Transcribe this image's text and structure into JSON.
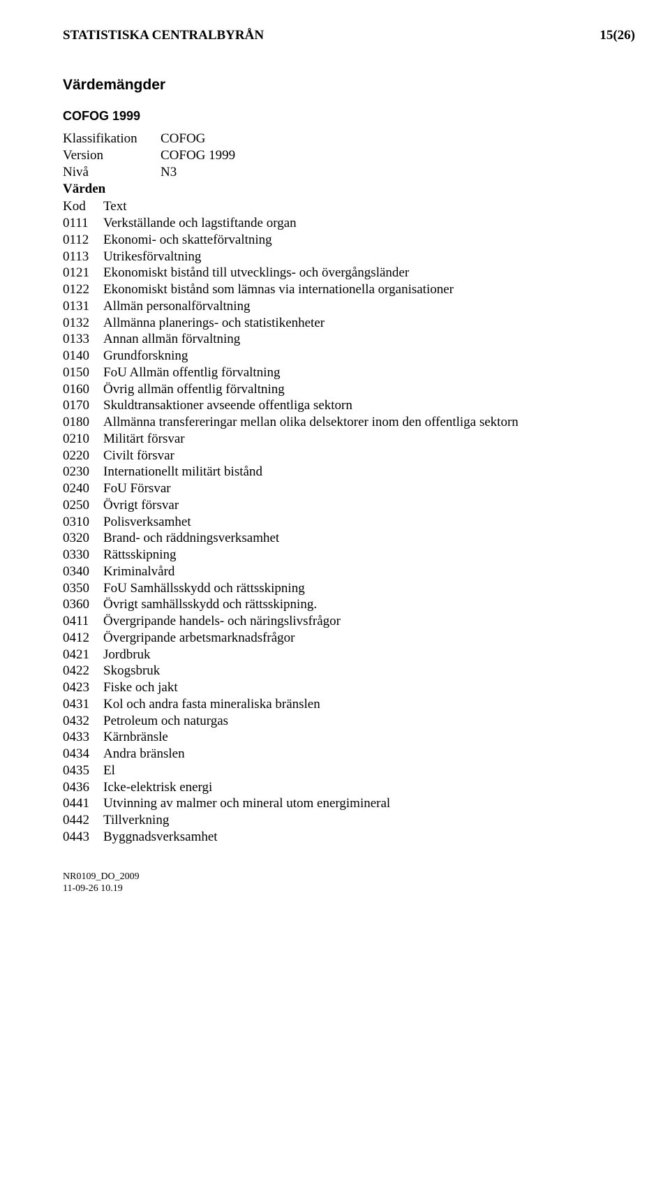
{
  "header": {
    "org": "STATISTISKA CENTRALBYRÅN",
    "pagenum": "15(26)"
  },
  "section_title": "Värdemängder",
  "sub_title": "COFOG 1999",
  "meta": {
    "klass_label": "Klassifikation",
    "klass_value": "COFOG",
    "version_label": "Version",
    "version_value": "COFOG 1999",
    "niva_label": "Nivå",
    "niva_value": "N3",
    "varden_label": "Värden"
  },
  "columns": {
    "kod": "Kod",
    "text": "Text"
  },
  "rows": [
    {
      "code": "0111",
      "text": "Verkställande och lagstiftande organ"
    },
    {
      "code": "0112",
      "text": "Ekonomi- och skatteförvaltning"
    },
    {
      "code": "0113",
      "text": "Utrikesförvaltning"
    },
    {
      "code": "0121",
      "text": "Ekonomiskt bistånd till utvecklings- och övergångsländer"
    },
    {
      "code": "0122",
      "text": "Ekonomiskt bistånd som lämnas via internationella organisationer"
    },
    {
      "code": "0131",
      "text": "Allmän personalförvaltning"
    },
    {
      "code": "0132",
      "text": "Allmänna planerings- och statistikenheter"
    },
    {
      "code": "0133",
      "text": "Annan allmän förvaltning"
    },
    {
      "code": "0140",
      "text": "Grundforskning"
    },
    {
      "code": "0150",
      "text": "FoU Allmän offentlig förvaltning"
    },
    {
      "code": "0160",
      "text": "Övrig allmän offentlig förvaltning"
    },
    {
      "code": "0170",
      "text": "Skuldtransaktioner avseende offentliga sektorn"
    },
    {
      "code": "0180",
      "text": "Allmänna transfereringar mellan olika delsektorer inom den offentliga sektorn"
    },
    {
      "code": "0210",
      "text": "Militärt försvar"
    },
    {
      "code": "0220",
      "text": "Civilt försvar"
    },
    {
      "code": "0230",
      "text": "Internationellt militärt bistånd"
    },
    {
      "code": "0240",
      "text": "FoU Försvar"
    },
    {
      "code": "0250",
      "text": "Övrigt försvar"
    },
    {
      "code": "0310",
      "text": "Polisverksamhet"
    },
    {
      "code": "0320",
      "text": "Brand- och räddningsverksamhet"
    },
    {
      "code": "0330",
      "text": "Rättsskipning"
    },
    {
      "code": "0340",
      "text": "Kriminalvård"
    },
    {
      "code": "0350",
      "text": "FoU Samhällsskydd och rättsskipning"
    },
    {
      "code": "0360",
      "text": "Övrigt samhällsskydd och rättsskipning."
    },
    {
      "code": "0411",
      "text": "Övergripande handels- och näringslivsfrågor"
    },
    {
      "code": "0412",
      "text": "Övergripande arbetsmarknadsfrågor"
    },
    {
      "code": "0421",
      "text": "Jordbruk"
    },
    {
      "code": "0422",
      "text": "Skogsbruk"
    },
    {
      "code": "0423",
      "text": "Fiske och jakt"
    },
    {
      "code": "0431",
      "text": "Kol och andra fasta mineraliska bränslen"
    },
    {
      "code": "0432",
      "text": "Petroleum och naturgas"
    },
    {
      "code": "0433",
      "text": "Kärnbränsle"
    },
    {
      "code": "0434",
      "text": "Andra bränslen"
    },
    {
      "code": "0435",
      "text": "El"
    },
    {
      "code": "0436",
      "text": "Icke-elektrisk energi"
    },
    {
      "code": "0441",
      "text": "Utvinning av malmer och mineral utom energimineral"
    },
    {
      "code": "0442",
      "text": "Tillverkning"
    },
    {
      "code": "0443",
      "text": "Byggnadsverksamhet"
    }
  ],
  "footer": {
    "line1": "NR0109_DO_2009",
    "line2": "11-09-26 10.19"
  }
}
